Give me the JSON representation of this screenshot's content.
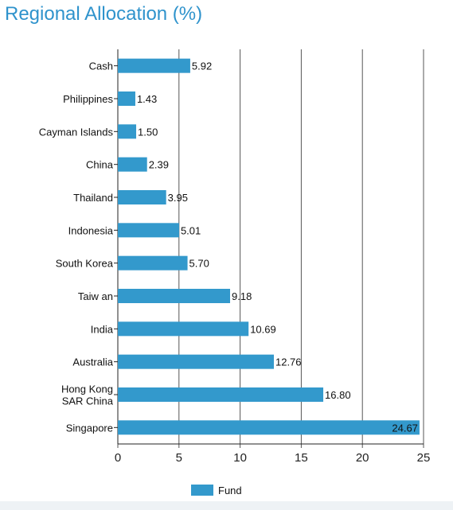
{
  "title": "Regional Allocation (%)",
  "colors": {
    "bar": "#3399cc",
    "title": "#2f93cc",
    "grid": "#555555"
  },
  "legend": {
    "label": "Fund",
    "position": "bottom"
  },
  "chart_data": {
    "type": "bar",
    "orientation": "horizontal",
    "title": "Regional Allocation (%)",
    "xlabel": "",
    "ylabel": "",
    "xlim": [
      0,
      25
    ],
    "x_ticks": [
      "0",
      "5",
      "10",
      "15",
      "20",
      "25"
    ],
    "grid": "vertical",
    "legend_position": "bottom",
    "categories": [
      "Cash",
      "Philippines",
      "Cayman Islands",
      "China",
      "Thailand",
      "Indonesia",
      "South Korea",
      "Taiw an",
      "India",
      "Australia",
      "Hong Kong SAR China",
      "Singapore"
    ],
    "category_lines": [
      [
        "Cash"
      ],
      [
        "Philippines"
      ],
      [
        "Cayman Islands"
      ],
      [
        "China"
      ],
      [
        "Thailand"
      ],
      [
        "Indonesia"
      ],
      [
        "South Korea"
      ],
      [
        "Taiw an"
      ],
      [
        "India"
      ],
      [
        "Australia"
      ],
      [
        "Hong Kong",
        "SAR China"
      ],
      [
        "Singapore"
      ]
    ],
    "series": [
      {
        "name": "Fund",
        "values": [
          5.92,
          1.43,
          1.5,
          2.39,
          3.95,
          5.01,
          5.7,
          9.18,
          10.69,
          12.76,
          16.8,
          24.67
        ],
        "labels": [
          "5.92",
          "1.43",
          "1.50",
          "2.39",
          "3.95",
          "5.01",
          "5.70",
          "9.18",
          "10.69",
          "12.76",
          "16.80",
          "24.67"
        ]
      }
    ]
  }
}
